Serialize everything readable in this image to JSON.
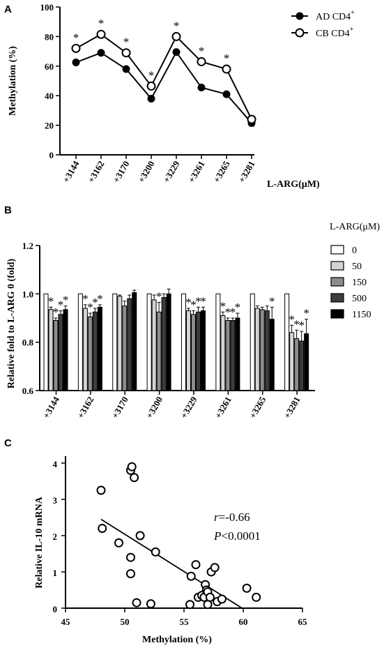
{
  "chart_data": [
    {
      "panel": "A",
      "type": "line",
      "categories": [
        "+3144",
        "+3162",
        "+3170",
        "+3200",
        "+3229",
        "+3261",
        "+3265",
        "+3281"
      ],
      "series": [
        {
          "name": "AD CD4",
          "name_sup": "+",
          "marker": "filled",
          "values": [
            62.5,
            69,
            58,
            38,
            69.5,
            45.5,
            41,
            21.5
          ]
        },
        {
          "name": "CB CD4",
          "name_sup": "+",
          "marker": "open",
          "values": [
            72,
            81.5,
            69,
            46.5,
            80,
            63,
            58,
            24
          ]
        }
      ],
      "significance": [
        "*",
        "*",
        "*",
        "*",
        "*",
        "*",
        "*",
        ""
      ],
      "ylabel": "Methylation (%)",
      "xlabel": "L-ARG(μM)",
      "ylim": [
        0,
        100
      ],
      "yticks": [
        "0",
        "20",
        "40",
        "60",
        "80",
        "100"
      ],
      "legend": "top-right"
    },
    {
      "panel": "B",
      "type": "bar",
      "categories": [
        "+3144",
        "+3162",
        "+3170",
        "+3200",
        "+3229",
        "+3261",
        "+3265",
        "+3281"
      ],
      "legend_title": "L-ARG(μM)",
      "series": [
        {
          "name": "0",
          "color": "#ffffff",
          "values": [
            1.0,
            1.0,
            1.0,
            1.0,
            1.0,
            1.0,
            1.0,
            1.0
          ],
          "errors": [
            0,
            0,
            0,
            0,
            0,
            0,
            0,
            0
          ]
        },
        {
          "name": "50",
          "color": "#d4d4d4",
          "values": [
            0.935,
            0.94,
            0.99,
            0.975,
            0.93,
            0.91,
            0.94,
            0.84
          ],
          "errors": [
            0.01,
            0.015,
            0.005,
            0.02,
            0.01,
            0.015,
            0.01,
            0.03
          ]
        },
        {
          "name": "150",
          "color": "#8c8c8c",
          "values": [
            0.89,
            0.905,
            0.95,
            0.925,
            0.915,
            0.89,
            0.935,
            0.815
          ],
          "errors": [
            0.01,
            0.015,
            0.02,
            0.04,
            0.015,
            0.01,
            0.01,
            0.035
          ]
        },
        {
          "name": "500",
          "color": "#3d3d3d",
          "values": [
            0.915,
            0.925,
            0.98,
            0.985,
            0.925,
            0.89,
            0.93,
            0.805
          ],
          "errors": [
            0.015,
            0.015,
            0.015,
            0.015,
            0.02,
            0.01,
            0.02,
            0.04
          ]
        },
        {
          "name": "1150",
          "color": "#000000",
          "values": [
            0.935,
            0.945,
            1.005,
            1.0,
            0.93,
            0.9,
            0.895,
            0.835
          ],
          "errors": [
            0.015,
            0.01,
            0.01,
            0.02,
            0.015,
            0.02,
            0.05,
            0.06
          ]
        }
      ],
      "significance": [
        [
          "",
          "*",
          "*",
          "*",
          "*"
        ],
        [
          "",
          "*",
          "*",
          "*",
          "*"
        ],
        [
          "",
          "",
          "",
          "",
          ""
        ],
        [
          "",
          "",
          "*",
          "",
          ""
        ],
        [
          "",
          "*",
          "*",
          "*",
          "*"
        ],
        [
          "",
          "*",
          "*",
          "*",
          "*"
        ],
        [
          "",
          "",
          "",
          "",
          "*"
        ],
        [
          "",
          "*",
          "*",
          "*",
          "*"
        ]
      ],
      "ylabel": "Relative fold to L-ARG  0 (fold)",
      "ylim": [
        0.6,
        1.2
      ],
      "yticks": [
        "0.6",
        "0.8",
        "1.0",
        "1.2"
      ],
      "legend": "right"
    },
    {
      "panel": "C",
      "type": "scatter",
      "points": [
        {
          "x": 48.0,
          "y": 3.25
        },
        {
          "x": 48.1,
          "y": 2.2
        },
        {
          "x": 49.5,
          "y": 1.8
        },
        {
          "x": 50.5,
          "y": 3.8
        },
        {
          "x": 50.6,
          "y": 3.9
        },
        {
          "x": 50.8,
          "y": 3.6
        },
        {
          "x": 50.5,
          "y": 1.4
        },
        {
          "x": 50.5,
          "y": 0.95
        },
        {
          "x": 51.0,
          "y": 0.15
        },
        {
          "x": 51.3,
          "y": 2.0
        },
        {
          "x": 52.2,
          "y": 0.12
        },
        {
          "x": 52.6,
          "y": 1.55
        },
        {
          "x": 55.5,
          "y": 0.1
        },
        {
          "x": 55.6,
          "y": 0.88
        },
        {
          "x": 56.0,
          "y": 1.2
        },
        {
          "x": 56.2,
          "y": 0.3
        },
        {
          "x": 56.5,
          "y": 0.35
        },
        {
          "x": 56.7,
          "y": 0.3
        },
        {
          "x": 56.8,
          "y": 0.65
        },
        {
          "x": 56.9,
          "y": 0.5
        },
        {
          "x": 57.0,
          "y": 0.45
        },
        {
          "x": 57.0,
          "y": 0.1
        },
        {
          "x": 57.2,
          "y": 0.3
        },
        {
          "x": 57.3,
          "y": 1.0
        },
        {
          "x": 57.6,
          "y": 1.12
        },
        {
          "x": 57.8,
          "y": 0.18
        },
        {
          "x": 58.2,
          "y": 0.25
        },
        {
          "x": 60.3,
          "y": 0.55
        },
        {
          "x": 61.1,
          "y": 0.3
        }
      ],
      "fit_line": {
        "x": [
          48.0,
          59.9
        ],
        "y": [
          2.45,
          0.0
        ]
      },
      "r_label": "r",
      "r_value": "=-0.66",
      "p_label": "P",
      "p_value": "<0.0001",
      "xlabel": "Methylation (%)",
      "ylabel": "Relative  IL-10  mRNA",
      "xlim": [
        45,
        65
      ],
      "ylim": [
        0,
        4
      ],
      "xticks": [
        "45",
        "50",
        "55",
        "60",
        "65"
      ],
      "yticks": [
        "0",
        "1",
        "2",
        "3",
        "4"
      ]
    }
  ]
}
